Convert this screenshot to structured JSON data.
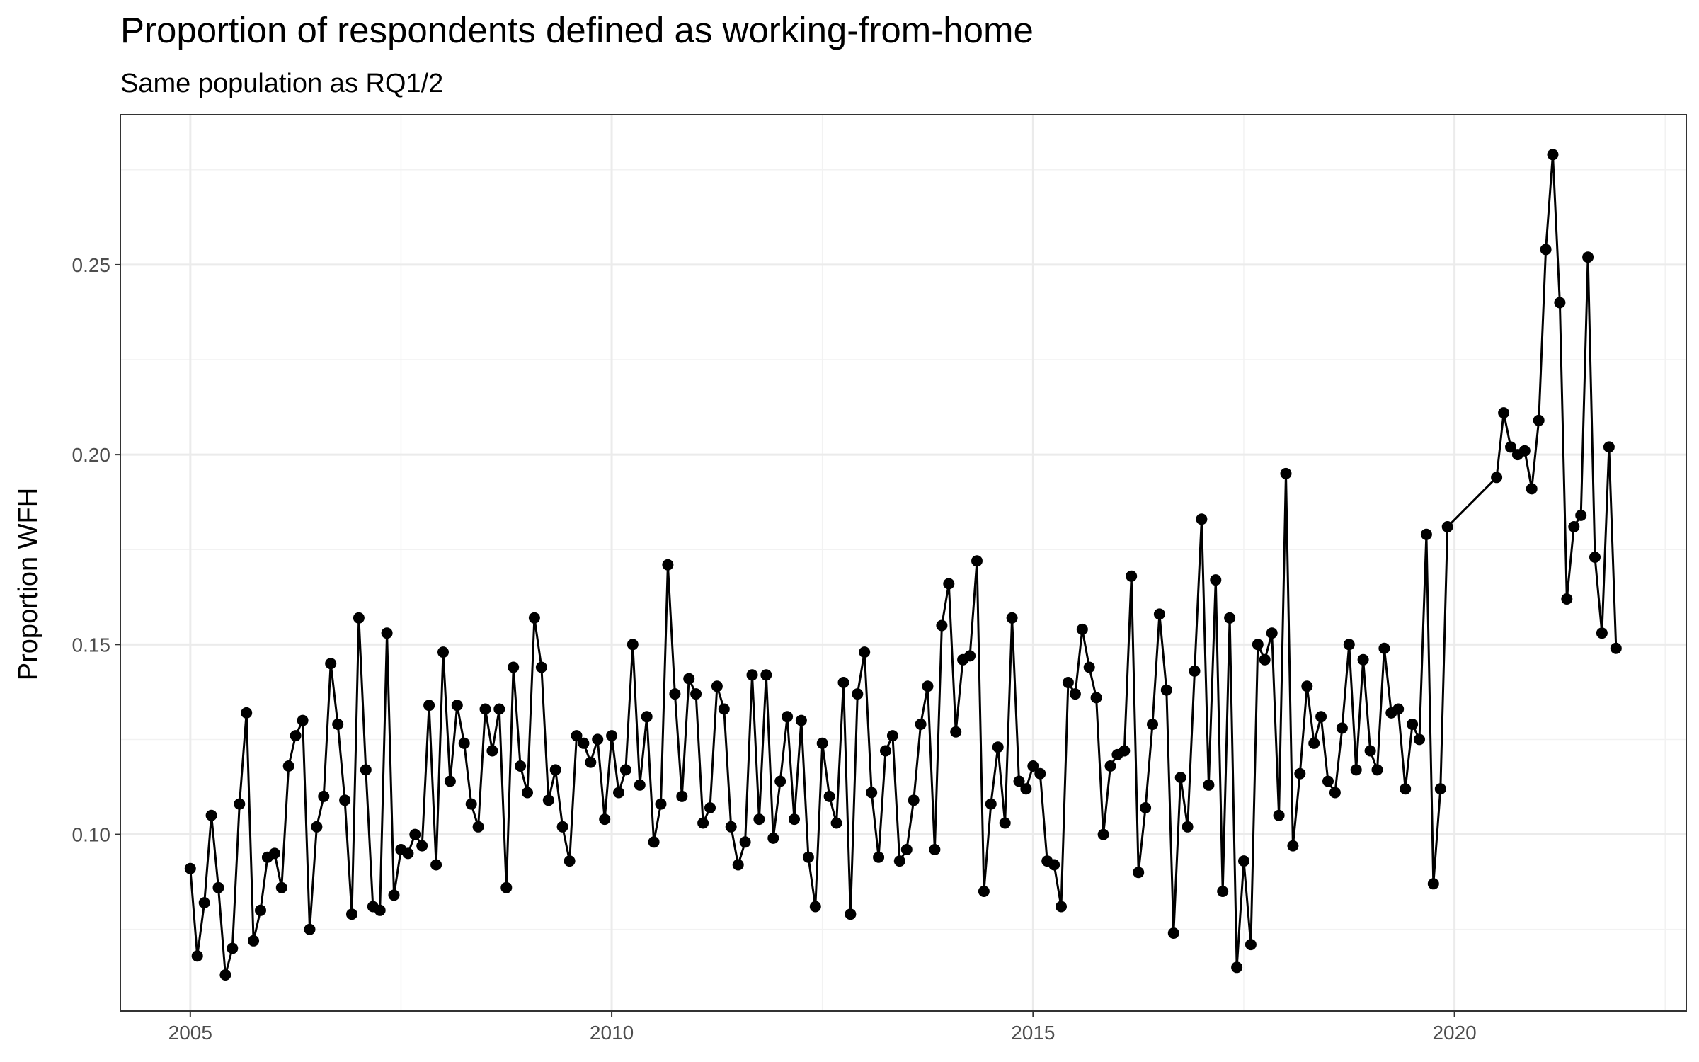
{
  "chart_data": {
    "type": "line",
    "title": "Proportion of respondents defined as working-from-home",
    "subtitle": "Same population as RQ1/2",
    "xlabel": "",
    "ylabel": "Proportion WFH",
    "x_tick_labels": [
      "2005",
      "2010",
      "2015",
      "2020"
    ],
    "y_tick_labels": [
      "0.10",
      "0.15",
      "0.20",
      "0.25"
    ],
    "xlim": [
      2004.17,
      2022.75
    ],
    "ylim": [
      0.0535,
      0.2895
    ],
    "grid": true,
    "legend": "none",
    "series_color": "#000000",
    "x_start_year": 2005,
    "series": [
      {
        "values": [
          0.091,
          0.068,
          0.082,
          0.105,
          0.086,
          0.063,
          0.07,
          0.108,
          0.132,
          0.072,
          0.08,
          0.094,
          0.095,
          0.086,
          0.118,
          0.126,
          0.13,
          0.075,
          0.102,
          0.11,
          0.145,
          0.129,
          0.109,
          0.079,
          0.157,
          0.117,
          0.081,
          0.08,
          0.153,
          0.084,
          0.096,
          0.095,
          0.1,
          0.097,
          0.134,
          0.092,
          0.148,
          0.114,
          0.134,
          0.124,
          0.108,
          0.102,
          0.133,
          0.122,
          0.133,
          0.086,
          0.144,
          0.118,
          0.111,
          0.157,
          0.144,
          0.109,
          0.117,
          0.102,
          0.093,
          0.126,
          0.124,
          0.119,
          0.125,
          0.104,
          0.126,
          0.111,
          0.117,
          0.15,
          0.113,
          0.131,
          0.098,
          0.108,
          0.171,
          0.137,
          0.11,
          0.141,
          0.137,
          0.103,
          0.107,
          0.139,
          0.133,
          0.102,
          0.092,
          0.098,
          0.142,
          0.104,
          0.142,
          0.099,
          0.114,
          0.131,
          0.104,
          0.13,
          0.094,
          0.081,
          0.124,
          0.11,
          0.103,
          0.14,
          0.079,
          0.137,
          0.148,
          0.111,
          0.094,
          0.122,
          0.126,
          0.093,
          0.096,
          0.109,
          0.129,
          0.139,
          0.096,
          0.155,
          0.166,
          0.127,
          0.146,
          0.147,
          0.172,
          0.085,
          0.108,
          0.123,
          0.103,
          0.157,
          0.114,
          0.112,
          0.118,
          0.116,
          0.093,
          0.092,
          0.081,
          0.14,
          0.137,
          0.154,
          0.144,
          0.136,
          0.1,
          0.118,
          0.121,
          0.122,
          0.168,
          0.09,
          0.107,
          0.129,
          0.158,
          0.138,
          0.074,
          0.115,
          0.102,
          0.143,
          0.183,
          0.113,
          0.167,
          0.085,
          0.157,
          0.065,
          0.093,
          0.071,
          0.15,
          0.146,
          0.153,
          0.105,
          0.195,
          0.097,
          0.116,
          0.139,
          0.124,
          0.131,
          0.114,
          0.111,
          0.128,
          0.15,
          0.117,
          0.146,
          0.122,
          0.117,
          0.149,
          0.132,
          0.133,
          0.112,
          0.129,
          0.125,
          0.179,
          0.087,
          0.112,
          0.181,
          null,
          null,
          null,
          null,
          null,
          null,
          0.194,
          0.211,
          0.202,
          0.2,
          0.201,
          0.191,
          0.209,
          0.254,
          0.279,
          0.24,
          0.162,
          0.181,
          0.184,
          0.252,
          0.173,
          0.153,
          0.202,
          0.149
        ]
      }
    ]
  }
}
